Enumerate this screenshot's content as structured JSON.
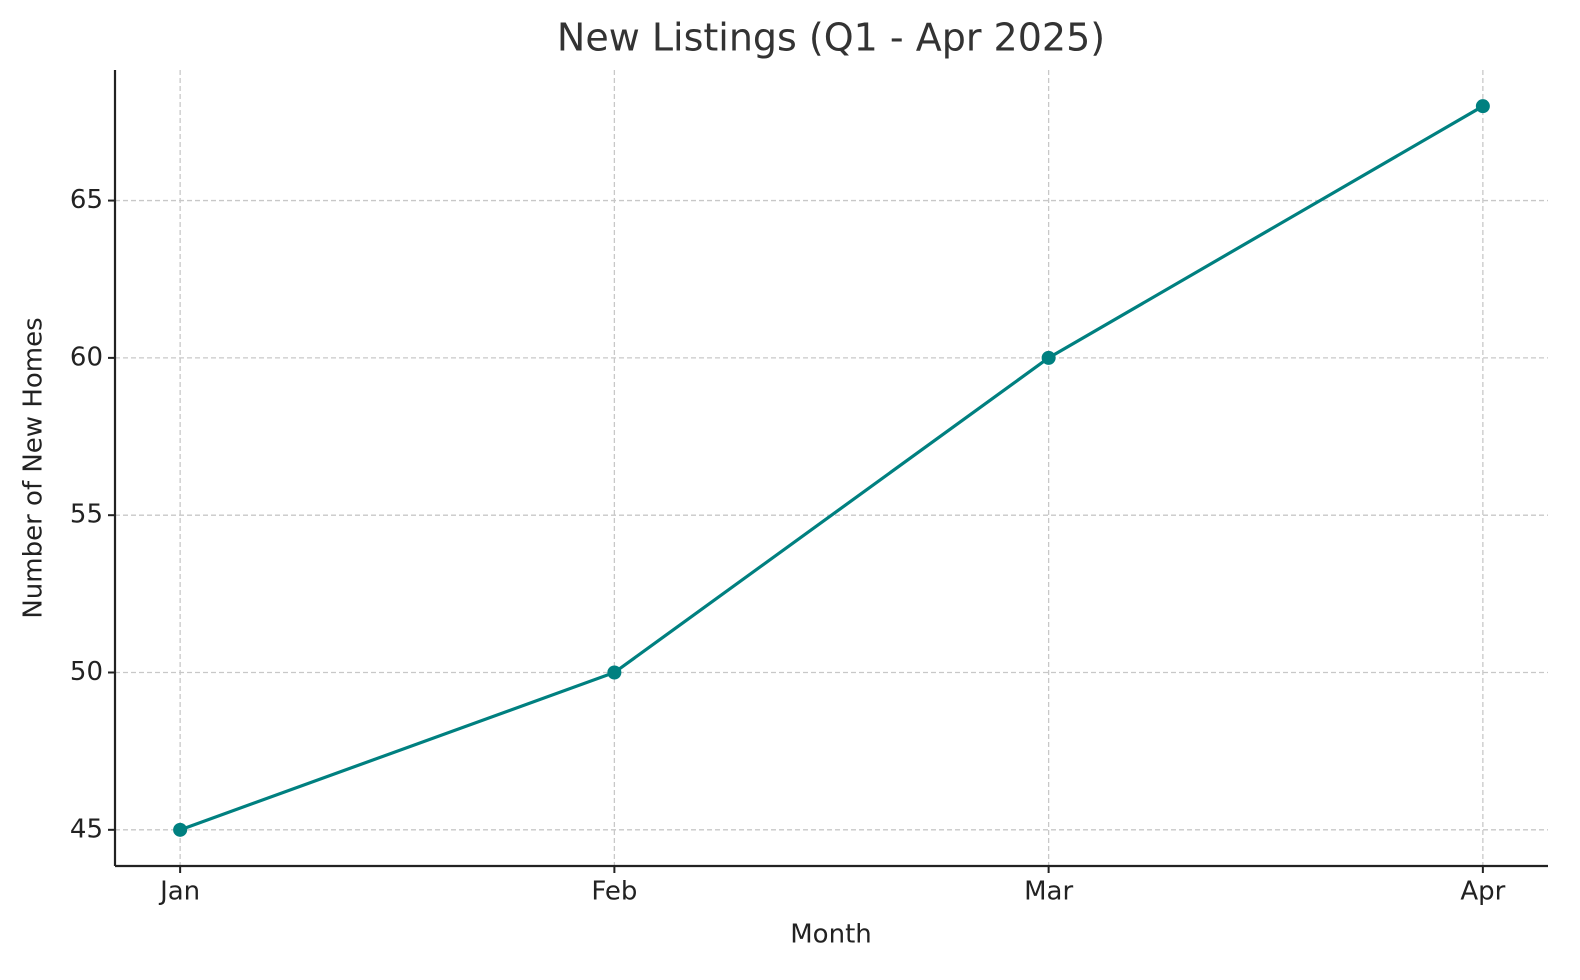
{
  "chart_data": {
    "type": "line",
    "title": "New Listings (Q1 - Apr 2025)",
    "x_label": "Month",
    "y_label": "Number of New Homes",
    "categories": [
      "Jan",
      "Feb",
      "Mar",
      "Apr"
    ],
    "values": [
      45,
      50,
      60,
      68
    ],
    "color": "#008080",
    "ylim": [
      43.85,
      69.15
    ],
    "yticks": [
      45,
      50,
      55,
      60,
      65
    ],
    "grid": true
  }
}
